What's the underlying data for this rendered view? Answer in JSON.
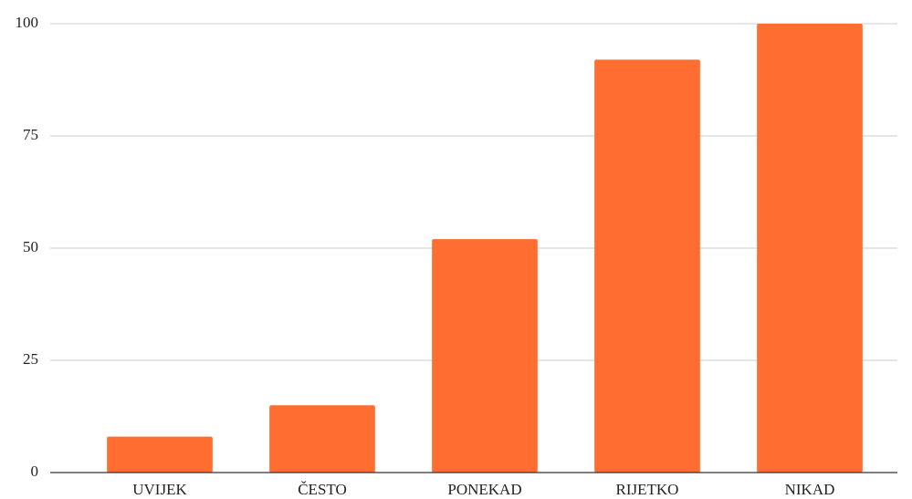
{
  "chart_data": {
    "type": "bar",
    "categories": [
      "UVIJEK",
      "ČESTO",
      "PONEKAD",
      "RIJETKO",
      "NIKAD"
    ],
    "values": [
      8,
      15,
      52,
      92,
      100
    ],
    "color": "#ff6d31",
    "ylim": [
      0,
      100
    ],
    "yticks": [
      0,
      25,
      50,
      75,
      100
    ],
    "grid": true
  }
}
